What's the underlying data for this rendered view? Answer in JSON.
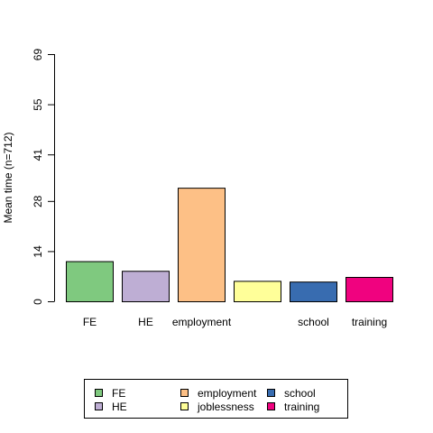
{
  "chart_data": {
    "type": "bar",
    "ylabel": "Mean time (n=712)",
    "categories": [
      "FE",
      "HE",
      "employment",
      "joblessness",
      "school",
      "training"
    ],
    "axis_labels": [
      "FE",
      "HE",
      "employment",
      "",
      "school",
      "training"
    ],
    "values": [
      11.2,
      8.5,
      31.7,
      5.7,
      5.5,
      6.8
    ],
    "colors": [
      "#7fc97f",
      "#beaed4",
      "#fdc086",
      "#ffff99",
      "#386cb0",
      "#f0027f"
    ],
    "yticks": [
      "0",
      "14",
      "28",
      "41",
      "55",
      "69"
    ],
    "ylim": [
      0,
      69
    ],
    "grid": false,
    "legend": {
      "position": "bottom",
      "items": [
        "FE",
        "HE",
        "employment",
        "joblessness",
        "school",
        "training"
      ]
    }
  }
}
